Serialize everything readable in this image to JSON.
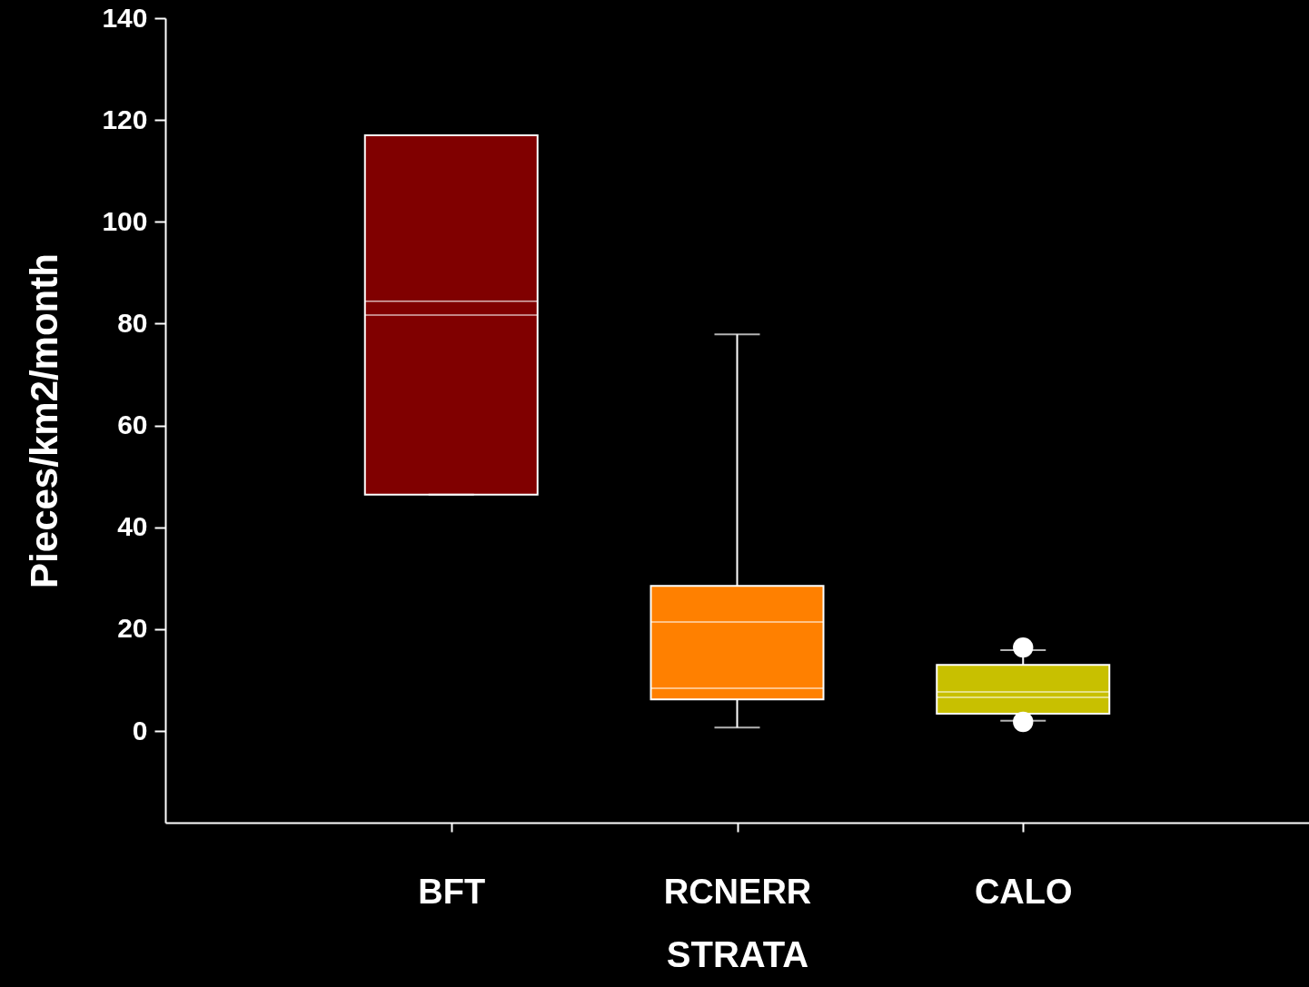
{
  "chart_data": {
    "type": "box",
    "xlabel": "STRATA",
    "ylabel": "Pieces/km2/month",
    "categories": [
      "BFT",
      "RCNERR",
      "CALO"
    ],
    "colors": [
      "#800000",
      "#ff8000",
      "#c8c000"
    ],
    "boxes": [
      {
        "low": 46.4,
        "q1": 46.4,
        "median": 81.7,
        "mean": 84.4,
        "q3": 117,
        "high": 117
      },
      {
        "low": 0.7,
        "q1": 6.2,
        "median": 8.4,
        "mean": 21.4,
        "q3": 28.5,
        "high": 77.9
      },
      {
        "low": 2,
        "q1": 3.4,
        "median": 6.6,
        "mean": 7.7,
        "q3": 13,
        "high": 15.9,
        "outliers": [
          16.4,
          1.8
        ]
      }
    ],
    "ylim": [
      -18,
      140
    ],
    "yticks": [
      0,
      20,
      40,
      60,
      80,
      100,
      120,
      140
    ],
    "grid": false
  }
}
